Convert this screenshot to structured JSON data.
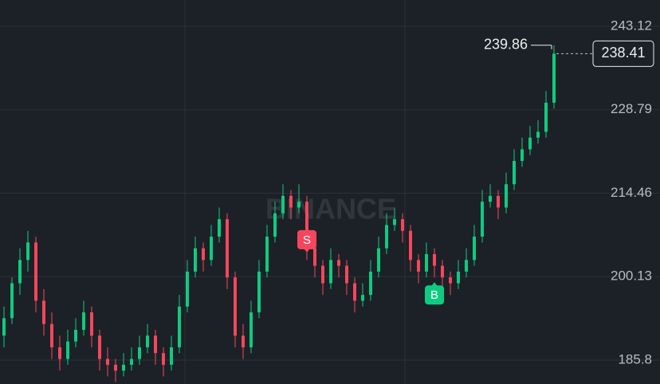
{
  "chart_data": {
    "type": "candlestick",
    "watermark": "BINANCE",
    "ylim": [
      181.7,
      247.63
    ],
    "yticks": [
      185.8,
      200.13,
      214.46,
      228.79,
      243.12
    ],
    "grid": true,
    "up_color": "#0ecb81",
    "down_color": "#f6465d",
    "candles": [
      [
        190,
        195,
        188,
        193
      ],
      [
        193,
        200,
        192,
        199
      ],
      [
        199,
        205,
        197,
        203
      ],
      [
        203,
        208,
        201,
        206
      ],
      [
        206,
        207,
        194,
        196
      ],
      [
        196,
        198,
        190,
        192
      ],
      [
        192,
        194,
        186,
        188
      ],
      [
        188,
        190,
        184,
        186
      ],
      [
        186,
        191,
        185,
        189
      ],
      [
        189,
        193,
        188,
        191
      ],
      [
        191,
        196,
        190,
        194
      ],
      [
        194,
        195,
        188,
        190
      ],
      [
        190,
        191,
        184,
        186
      ],
      [
        186,
        188,
        183,
        185
      ],
      [
        185,
        186,
        182,
        184
      ],
      [
        184,
        187,
        183,
        185
      ],
      [
        185,
        188,
        184,
        186
      ],
      [
        186,
        190,
        185,
        188
      ],
      [
        188,
        192,
        187,
        190
      ],
      [
        190,
        191,
        185,
        187
      ],
      [
        187,
        188,
        183,
        185
      ],
      [
        185,
        190,
        184,
        188
      ],
      [
        188,
        197,
        187,
        195
      ],
      [
        195,
        203,
        194,
        201
      ],
      [
        201,
        207,
        200,
        205
      ],
      [
        205,
        206,
        201,
        203
      ],
      [
        203,
        209,
        202,
        207
      ],
      [
        207,
        212,
        206,
        210
      ],
      [
        210,
        211,
        198,
        200
      ],
      [
        200,
        201,
        188,
        190
      ],
      [
        190,
        192,
        186,
        188
      ],
      [
        188,
        196,
        187,
        194
      ],
      [
        194,
        203,
        193,
        201
      ],
      [
        201,
        209,
        200,
        207
      ],
      [
        207,
        213,
        206,
        211
      ],
      [
        211,
        216,
        210,
        214
      ],
      [
        214,
        215,
        210,
        212
      ],
      [
        212,
        216,
        211,
        213
      ],
      [
        213,
        214,
        203,
        205
      ],
      [
        205,
        207,
        200,
        202
      ],
      [
        202,
        203,
        197,
        199
      ],
      [
        199,
        205,
        198,
        203
      ],
      [
        203,
        204,
        200,
        202
      ],
      [
        202,
        203,
        197,
        199
      ],
      [
        199,
        200,
        194,
        196
      ],
      [
        196,
        199,
        195,
        197
      ],
      [
        197,
        203,
        196,
        201
      ],
      [
        201,
        207,
        200,
        205
      ],
      [
        205,
        211,
        204,
        209
      ],
      [
        209,
        212,
        208,
        210
      ],
      [
        210,
        211,
        206,
        208
      ],
      [
        208,
        209,
        201,
        203
      ],
      [
        203,
        204,
        199,
        201
      ],
      [
        201,
        206,
        200,
        204
      ],
      [
        204,
        205,
        200,
        202
      ],
      [
        202,
        203,
        198,
        200
      ],
      [
        200,
        201,
        197,
        199
      ],
      [
        199,
        203,
        198,
        201
      ],
      [
        201,
        205,
        200,
        203
      ],
      [
        203,
        209,
        202,
        207
      ],
      [
        207,
        215,
        206,
        213
      ],
      [
        213,
        216,
        212,
        214
      ],
      [
        214,
        215,
        210,
        212
      ],
      [
        212,
        218,
        211,
        216
      ],
      [
        216,
        222,
        215,
        220
      ],
      [
        220,
        224,
        219,
        222
      ],
      [
        222,
        226,
        221,
        224
      ],
      [
        224,
        227,
        223,
        225
      ],
      [
        225,
        232,
        224,
        230
      ],
      [
        230,
        239.86,
        229,
        238.41
      ]
    ],
    "markers": [
      {
        "label": "S",
        "candle": 38
      },
      {
        "label": "B",
        "candle": 54
      }
    ]
  }
}
